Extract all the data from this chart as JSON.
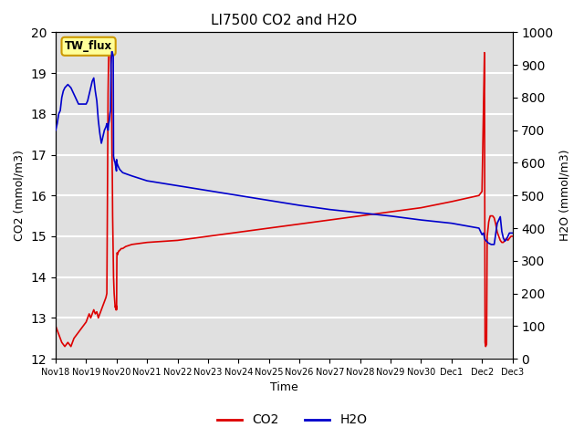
{
  "title": "LI7500 CO2 and H2O",
  "xlabel": "Time",
  "ylabel_left": "CO2 (mmol/m3)",
  "ylabel_right": "H2O (mmol/m3)",
  "ylim_left": [
    12.0,
    20.0
  ],
  "ylim_right": [
    0,
    1000
  ],
  "yticks_left": [
    12.0,
    13.0,
    14.0,
    15.0,
    16.0,
    17.0,
    18.0,
    19.0,
    20.0
  ],
  "yticks_right": [
    0,
    100,
    200,
    300,
    400,
    500,
    600,
    700,
    800,
    900,
    1000
  ],
  "background_color": "#e0e0e0",
  "grid_color": "#ffffff",
  "annotation_text": "TW_flux",
  "annotation_bg": "#ffff99",
  "annotation_border": "#cc9900",
  "co2_color": "#dd0000",
  "h2o_color": "#0000cc",
  "legend_co2": "CO2",
  "legend_h2o": "H2O",
  "co2_data": {
    "x": [
      0,
      0.05,
      0.1,
      0.15,
      0.2,
      0.3,
      0.4,
      0.5,
      0.6,
      0.7,
      0.8,
      0.9,
      1.0,
      1.05,
      1.1,
      1.15,
      1.2,
      1.25,
      1.3,
      1.35,
      1.4,
      1.45,
      1.5,
      1.55,
      1.6,
      1.65,
      1.68,
      1.7,
      1.72,
      1.74,
      1.76,
      1.78,
      1.8,
      1.82,
      1.84,
      1.85,
      1.86,
      1.87,
      1.88,
      1.89,
      1.9,
      1.91,
      1.92,
      1.93,
      1.94,
      1.95,
      1.96,
      1.97,
      1.975,
      1.98,
      1.985,
      1.99,
      1.995,
      2.0,
      2.005,
      2.01,
      2.02,
      2.03,
      2.05,
      2.08,
      2.1,
      2.15,
      2.2,
      2.3,
      2.5,
      3.0,
      4.0,
      5.0,
      6.0,
      7.0,
      8.0,
      9.0,
      10.0,
      11.0,
      12.0,
      13.0,
      13.9,
      14.0,
      14.05,
      14.08,
      14.1,
      14.12,
      14.15,
      14.17,
      14.2,
      14.22,
      14.25,
      14.27,
      14.3,
      14.35,
      14.4,
      14.45,
      14.5,
      14.55,
      14.6,
      14.65,
      14.7,
      14.75,
      14.8,
      14.85,
      14.9,
      14.95,
      15.0
    ],
    "y": [
      12.8,
      12.7,
      12.6,
      12.5,
      12.4,
      12.3,
      12.4,
      12.3,
      12.5,
      12.6,
      12.7,
      12.8,
      12.9,
      13.0,
      13.1,
      13.0,
      13.1,
      13.2,
      13.1,
      13.15,
      13.0,
      13.1,
      13.2,
      13.3,
      13.4,
      13.5,
      13.6,
      16.0,
      18.5,
      19.5,
      19.8,
      19.8,
      19.5,
      19.0,
      18.0,
      17.0,
      16.5,
      15.5,
      15.0,
      14.5,
      14.0,
      13.8,
      13.6,
      13.5,
      13.4,
      13.3,
      13.25,
      13.3,
      13.2,
      13.25,
      13.2,
      13.3,
      13.2,
      13.2,
      14.0,
      14.5,
      14.6,
      14.55,
      14.6,
      14.65,
      14.65,
      14.7,
      14.7,
      14.75,
      14.8,
      14.85,
      14.9,
      15.0,
      15.1,
      15.2,
      15.3,
      15.4,
      15.5,
      15.6,
      15.7,
      15.85,
      16.0,
      16.1,
      18.2,
      19.5,
      12.4,
      12.3,
      12.35,
      15.0,
      15.2,
      15.35,
      15.45,
      15.5,
      15.5,
      15.5,
      15.45,
      15.3,
      15.1,
      15.0,
      14.9,
      14.85,
      14.85,
      14.9,
      14.95,
      14.9,
      14.95,
      15.0,
      15.0
    ]
  },
  "h2o_data": {
    "x": [
      0,
      0.05,
      0.1,
      0.15,
      0.2,
      0.25,
      0.3,
      0.4,
      0.5,
      0.6,
      0.65,
      0.7,
      0.75,
      0.8,
      0.85,
      0.9,
      0.95,
      1.0,
      1.05,
      1.1,
      1.15,
      1.2,
      1.25,
      1.3,
      1.35,
      1.4,
      1.45,
      1.5,
      1.55,
      1.6,
      1.65,
      1.68,
      1.7,
      1.72,
      1.74,
      1.76,
      1.78,
      1.8,
      1.82,
      1.84,
      1.85,
      1.86,
      1.87,
      1.88,
      1.89,
      1.9,
      1.91,
      1.92,
      1.93,
      1.94,
      1.95,
      1.96,
      1.97,
      1.98,
      1.985,
      1.99,
      1.995,
      2.0,
      2.005,
      2.01,
      2.05,
      2.1,
      2.2,
      2.5,
      3.0,
      4.0,
      5.0,
      6.0,
      7.0,
      8.0,
      9.0,
      10.0,
      11.0,
      12.0,
      13.0,
      13.9,
      14.0,
      14.05,
      14.08,
      14.1,
      14.15,
      14.2,
      14.3,
      14.4,
      14.5,
      14.6,
      14.65,
      14.7,
      14.75,
      14.8,
      14.85,
      14.9,
      14.95,
      15.0
    ],
    "y": [
      700,
      720,
      750,
      760,
      800,
      820,
      830,
      840,
      830,
      810,
      800,
      790,
      780,
      780,
      780,
      780,
      780,
      780,
      790,
      810,
      830,
      850,
      860,
      820,
      790,
      730,
      690,
      660,
      680,
      700,
      710,
      720,
      710,
      700,
      720,
      730,
      750,
      760,
      900,
      940,
      940,
      940,
      935,
      930,
      925,
      620,
      615,
      610,
      605,
      605,
      600,
      595,
      590,
      585,
      580,
      578,
      575,
      610,
      605,
      600,
      590,
      580,
      570,
      560,
      545,
      530,
      515,
      500,
      485,
      470,
      457,
      447,
      437,
      425,
      415,
      400,
      380,
      385,
      370,
      365,
      360,
      355,
      350,
      350,
      415,
      435,
      390,
      370,
      360,
      365,
      375,
      385,
      385,
      385
    ]
  },
  "xtick_labels": [
    "Nov 18",
    "Nov 19",
    "Nov 20",
    "Nov 21",
    "Nov 22",
    "Nov 23",
    "Nov 24",
    "Nov 25",
    "Nov 26",
    "Nov 27",
    "Nov 28",
    "Nov 29",
    "Nov 30",
    "Dec 1",
    "Dec 2",
    "Dec 3"
  ],
  "xtick_positions": [
    0,
    1,
    2,
    3,
    4,
    5,
    6,
    7,
    8,
    9,
    10,
    11,
    12,
    13,
    14,
    15
  ],
  "figsize": [
    6.4,
    4.8
  ],
  "dpi": 100
}
